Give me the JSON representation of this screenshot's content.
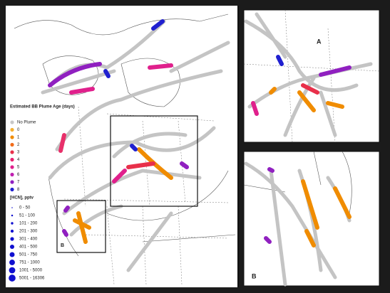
{
  "legend": {
    "age_title": "Estimated BB Plume Age (days)",
    "age_items": [
      {
        "label": "No Plume",
        "color": "#c8c8c8"
      },
      {
        "label": "0",
        "color": "#f5b030"
      },
      {
        "label": "1",
        "color": "#f08c00"
      },
      {
        "label": "2",
        "color": "#f26c1a"
      },
      {
        "label": "3",
        "color": "#e8304a"
      },
      {
        "label": "4",
        "color": "#e8206e"
      },
      {
        "label": "5",
        "color": "#e0208c"
      },
      {
        "label": "6",
        "color": "#c020b0"
      },
      {
        "label": "7",
        "color": "#9020c0"
      },
      {
        "label": "8",
        "color": "#2020d0"
      }
    ],
    "hcn_title": "[HCN], pptv",
    "hcn_items": [
      "0 - 50",
      "51 - 100",
      "101 - 200",
      "201 - 300",
      "301 - 400",
      "401 - 500",
      "501 - 750",
      "751 - 1000",
      "1001 - 5000",
      "5001 - 16306"
    ],
    "hcn_color": "#1010d0"
  },
  "map": {
    "inset_a_label": "A",
    "inset_b_label": "B",
    "inset_b_marker": "B"
  }
}
